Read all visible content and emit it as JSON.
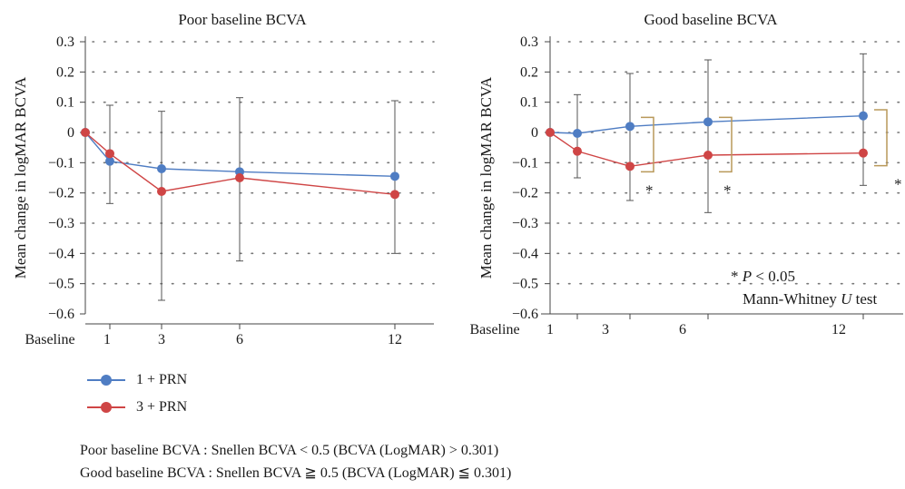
{
  "colors": {
    "series1": "#4f7dc3",
    "series2": "#cf4545",
    "bracket": "#b9995a",
    "axis": "#444444",
    "grid": "#777777",
    "errorbar": "#555555"
  },
  "chart_data": [
    {
      "type": "line",
      "title": "Poor baseline BCVA",
      "ylabel": "Mean change in logMAR BCVA",
      "xlabel": "",
      "ylim": [
        -0.6,
        0.3
      ],
      "yticks": [
        0.3,
        0.2,
        0.1,
        0,
        -0.1,
        -0.2,
        -0.3,
        -0.4,
        -0.5,
        -0.6
      ],
      "ytick_labels": [
        "0.3",
        "0.2",
        "0.1",
        "0",
        "−0.1",
        "−0.2",
        "−0.3",
        "−0.4",
        "−0.5",
        "−0.6"
      ],
      "xlim": [
        -0.5,
        13
      ],
      "xticks": [
        0,
        1,
        3,
        6,
        12
      ],
      "xtick_labels": [
        "Baseline",
        "1",
        "3",
        "6",
        "12"
      ],
      "grid": true,
      "series": [
        {
          "name": "1 + PRN",
          "x": [
            0,
            1,
            3,
            6,
            12
          ],
          "y": [
            0,
            -0.095,
            -0.12,
            -0.13,
            -0.145
          ],
          "err_low": [
            null,
            -0.235,
            null,
            -0.425,
            null
          ],
          "err_high": [
            null,
            0.09,
            null,
            0.115,
            null
          ]
        },
        {
          "name": "3 + PRN",
          "x": [
            0,
            1,
            3,
            6,
            12
          ],
          "y": [
            0,
            -0.07,
            -0.195,
            -0.15,
            -0.205
          ],
          "err_low": [
            null,
            null,
            -0.555,
            null,
            -0.4
          ],
          "err_high": [
            null,
            null,
            0.07,
            null,
            0.105
          ]
        }
      ],
      "brackets": []
    },
    {
      "type": "line",
      "title": "Good baseline BCVA",
      "ylabel": "Mean change in logMAR BCVA",
      "xlabel": "",
      "ylim": [
        -0.6,
        0.3
      ],
      "yticks": [
        0.3,
        0.2,
        0.1,
        0,
        -0.1,
        -0.2,
        -0.3,
        -0.4,
        -0.5,
        -0.6
      ],
      "ytick_labels": [
        "0.3",
        "0.2",
        "0.1",
        "0",
        "−0.1",
        "−0.2",
        "−0.3",
        "−0.4",
        "−0.5",
        "−0.6"
      ],
      "xlim": [
        0,
        14
      ],
      "xticks": [
        0,
        1,
        3,
        6,
        12
      ],
      "xtick_labels": [
        "Baseline",
        "1",
        "3",
        "6",
        "12"
      ],
      "grid": true,
      "series": [
        {
          "name": "1 + PRN",
          "x": [
            0,
            1,
            3,
            6,
            12
          ],
          "y": [
            0,
            -0.003,
            0.02,
            0.035,
            0.055
          ],
          "err_low": [
            null,
            -0.15,
            -0.225,
            -0.265,
            -0.175
          ],
          "err_high": [
            null,
            0.125,
            0.195,
            0.24,
            0.26
          ]
        },
        {
          "name": "3 + PRN",
          "x": [
            0,
            1,
            3,
            6,
            12
          ],
          "y": [
            0,
            -0.062,
            -0.112,
            -0.075,
            -0.068
          ],
          "err_low": [
            null,
            null,
            null,
            null,
            null
          ],
          "err_high": [
            null,
            null,
            null,
            null,
            null
          ]
        }
      ],
      "brackets": [
        {
          "x": 3,
          "y_top": 0.05,
          "y_bottom": -0.13,
          "star": "*"
        },
        {
          "x": 6,
          "y_top": 0.05,
          "y_bottom": -0.13,
          "star": "*"
        },
        {
          "x": 12,
          "y_top": 0.075,
          "y_bottom": -0.11,
          "star": "*"
        }
      ],
      "annotation": {
        "line1_star": "* ",
        "line1_p": "P",
        "line1_rest": " < 0.05",
        "line2_main": "Mann-Whitney ",
        "line2_u": "U",
        "line2_rest": " test"
      }
    }
  ],
  "legend": [
    {
      "label": "1 + PRN"
    },
    {
      "label": "3 + PRN"
    }
  ],
  "footnotes": [
    "Poor baseline BCVA : Snellen BCVA < 0.5 (BCVA (LogMAR) > 0.301)",
    "Good baseline BCVA : Snellen BCVA ≧ 0.5 (BCVA (LogMAR) ≦ 0.301)"
  ]
}
